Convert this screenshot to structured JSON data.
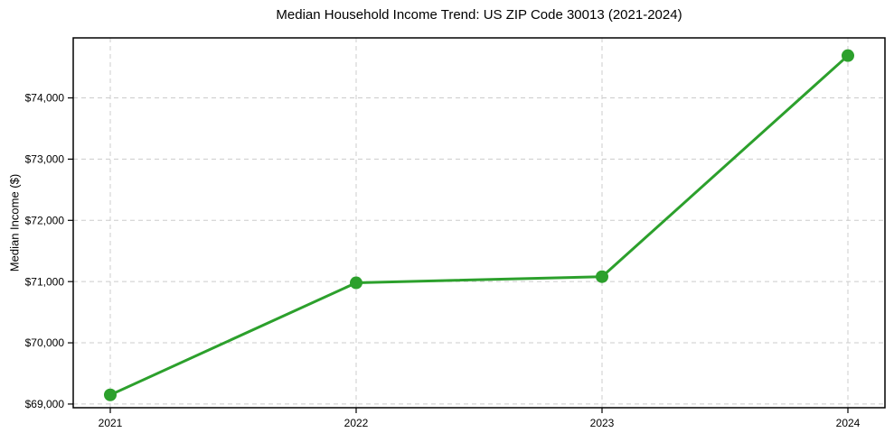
{
  "chart_data": {
    "type": "line",
    "title": "Median Household Income Trend: US ZIP Code 30013 (2021-2024)",
    "xlabel": "",
    "ylabel": "Median Income ($)",
    "categories": [
      "2021",
      "2022",
      "2023",
      "2024"
    ],
    "series": [
      {
        "name": "Median Household Income",
        "values": [
          69150,
          70980,
          71080,
          74690
        ]
      }
    ],
    "yticks": [
      {
        "value": 69000,
        "label": "$69,000"
      },
      {
        "value": 70000,
        "label": "$70,000"
      },
      {
        "value": 71000,
        "label": "$71,000"
      },
      {
        "value": 72000,
        "label": "$72,000"
      },
      {
        "value": 73000,
        "label": "$73,000"
      },
      {
        "value": 74000,
        "label": "$74,000"
      }
    ],
    "ylim": [
      68940,
      74980
    ],
    "grid": true,
    "grid_style": "dashed",
    "legend_position": "none",
    "line_color": "#2ca02c",
    "marker_color": "#2ca02c",
    "marker_shape": "circle",
    "grid_color": "#cccccc",
    "axis_color": "#000000",
    "text_color": "#000000",
    "background_color": "#ffffff"
  }
}
